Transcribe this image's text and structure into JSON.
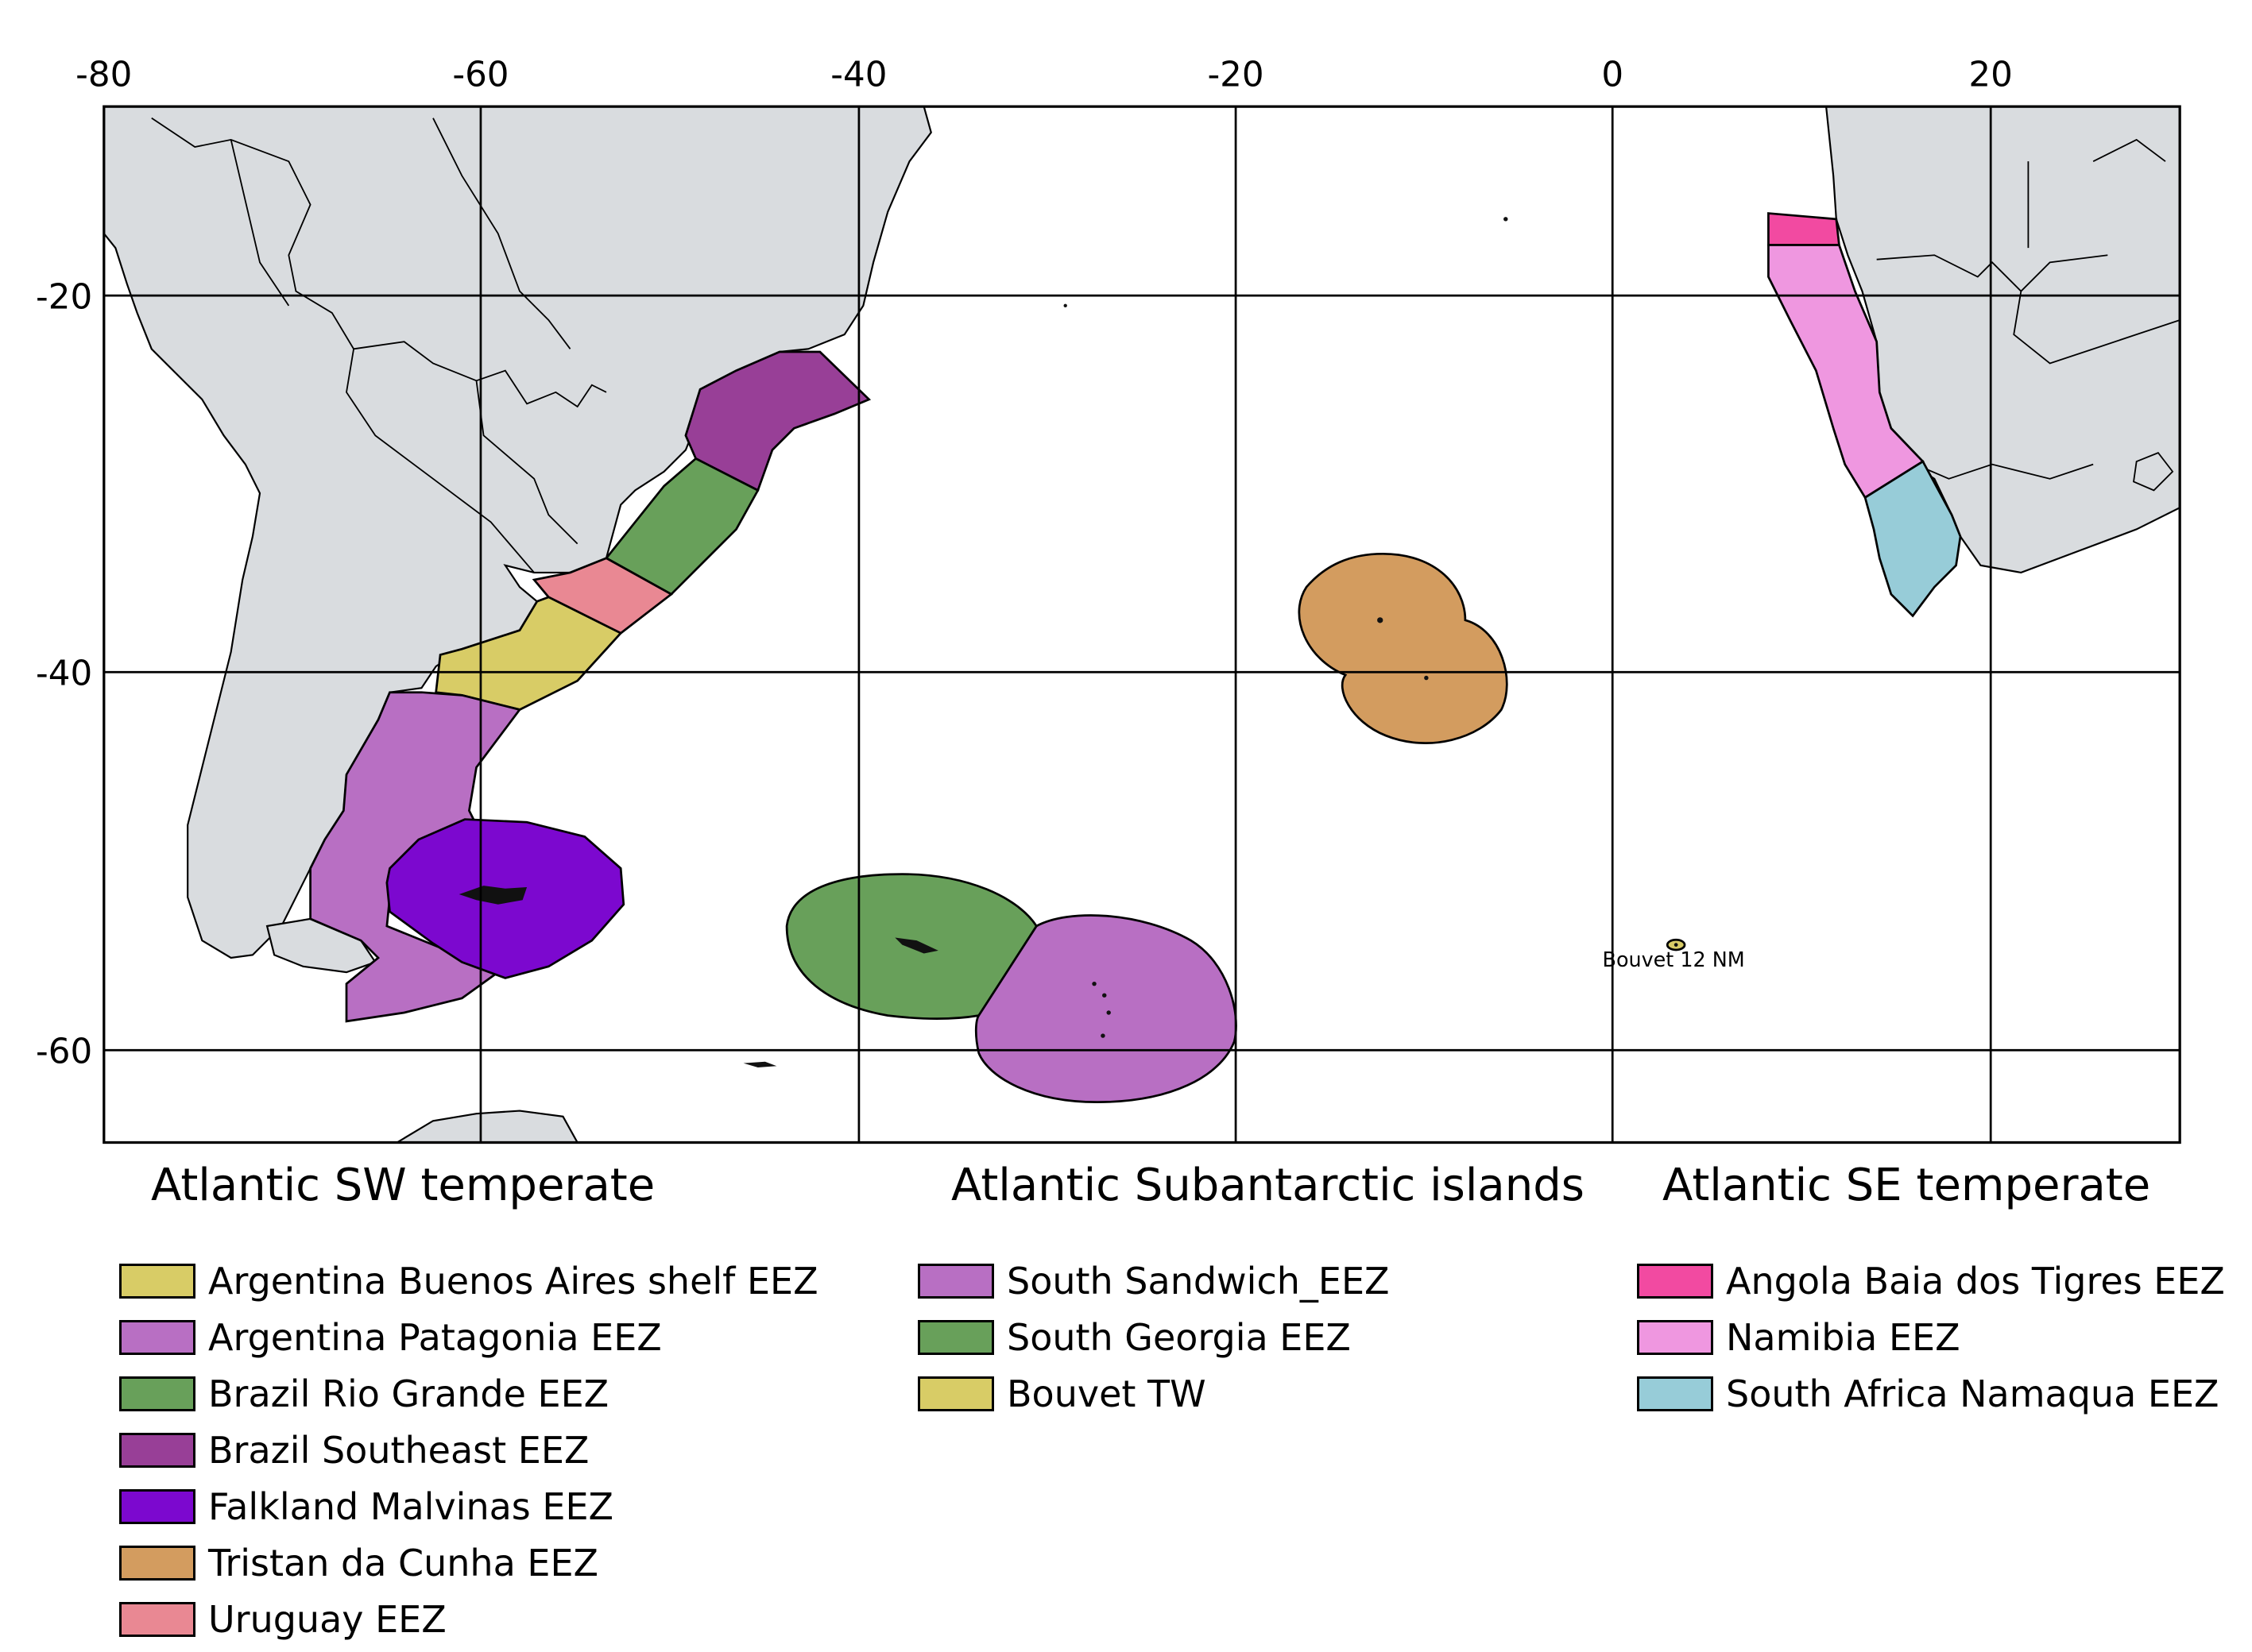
{
  "map": {
    "x_ticks": [
      "-80",
      "-60",
      "-40",
      "-20",
      "0",
      "20"
    ],
    "y_ticks": [
      "-20",
      "-40",
      "-60"
    ],
    "colors": {
      "land": "#d9dcdf",
      "argentina_buenos_aires_shelf": "#d8cc66",
      "argentina_patagonia": "#b86fc3",
      "brazil_rio_grande": "#68a05a",
      "brazil_southeast": "#983f97",
      "falkland_malvinas": "#7c08cf",
      "tristan_da_cunha": "#d39c5f",
      "uruguay": "#e98893",
      "south_sandwich": "#b86fc3",
      "south_georgia": "#68a05a",
      "bouvet": "#d8cc66",
      "angola_baia_dos_tigres": "#f24aa1",
      "namibia": "#ef97e0",
      "south_africa_namaqua": "#97ccd8"
    },
    "point_labels": {
      "bouvet": "Bouvet 12 NM"
    }
  },
  "legend": {
    "groups": [
      {
        "title": "Atlantic SW temperate",
        "items": [
          {
            "label": "Argentina Buenos Aires shelf EEZ",
            "color": "#d8cc66"
          },
          {
            "label": "Argentina Patagonia EEZ",
            "color": "#b86fc3"
          },
          {
            "label": "Brazil Rio Grande EEZ",
            "color": "#68a05a"
          },
          {
            "label": "Brazil Southeast EEZ",
            "color": "#983f97"
          },
          {
            "label": "Falkland Malvinas EEZ",
            "color": "#7c08cf"
          },
          {
            "label": "Tristan da Cunha EEZ",
            "color": "#d39c5f"
          },
          {
            "label": "Uruguay EEZ",
            "color": "#e98893"
          }
        ]
      },
      {
        "title": "Atlantic Subantarctic islands",
        "items": [
          {
            "label": "South Sandwich_EEZ",
            "color": "#b86fc3"
          },
          {
            "label": "South Georgia EEZ",
            "color": "#68a05a"
          },
          {
            "label": "Bouvet TW",
            "color": "#d8cc66"
          }
        ]
      },
      {
        "title": "Atlantic SE temperate",
        "items": [
          {
            "label": "Angola Baia dos Tigres EEZ",
            "color": "#f24aa1"
          },
          {
            "label": "Namibia EEZ",
            "color": "#ef97e0"
          },
          {
            "label": "South Africa Namaqua EEZ",
            "color": "#97ccd8"
          }
        ]
      }
    ]
  }
}
